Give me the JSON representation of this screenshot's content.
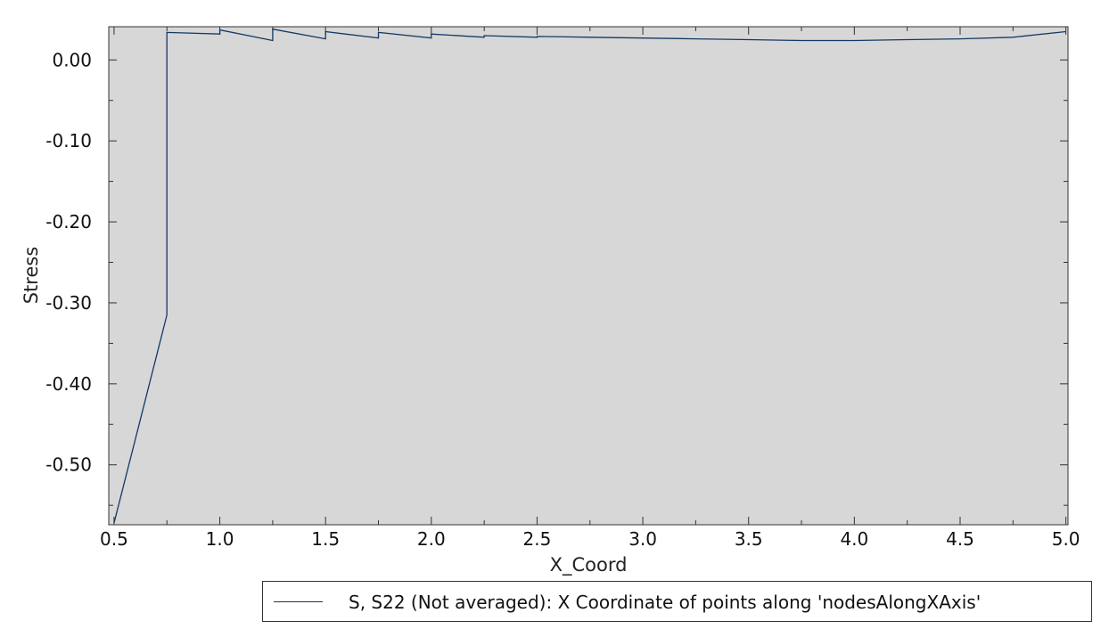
{
  "chart_data": {
    "type": "line",
    "title": "",
    "xlabel": "X_Coord",
    "ylabel": "Stress",
    "xlim": [
      0.475,
      5.01
    ],
    "ylim": [
      -0.574,
      0.041
    ],
    "x_ticks": [
      0.5,
      1.0,
      1.5,
      2.0,
      2.5,
      3.0,
      3.5,
      4.0,
      4.5,
      5.0
    ],
    "x_tick_labels": [
      "0.5",
      "1.0",
      "1.5",
      "2.0",
      "2.5",
      "3.0",
      "3.5",
      "4.0",
      "4.5",
      "5.0"
    ],
    "y_ticks": [
      0.0,
      -0.1,
      -0.2,
      -0.3,
      -0.4,
      -0.5
    ],
    "y_tick_labels": [
      "0.00",
      "-0.10",
      "-0.20",
      "-0.30",
      "-0.40",
      "-0.50"
    ],
    "grid": false,
    "background": "#d7d7d7",
    "line_color": "#123a63",
    "legend_position": "bottom-right",
    "series": [
      {
        "name": "S, S22 (Not averaged): X Coordinate of points along 'nodesAlongXAxis'",
        "x": [
          0.5,
          0.75,
          0.75,
          1.0,
          1.0,
          1.25,
          1.25,
          1.5,
          1.5,
          1.75,
          1.75,
          2.0,
          2.0,
          2.25,
          2.25,
          2.5,
          2.5,
          2.75,
          2.75,
          3.0,
          3.0,
          3.25,
          3.25,
          3.5,
          3.5,
          3.75,
          3.75,
          4.0,
          4.0,
          4.25,
          4.25,
          4.5,
          4.5,
          4.75,
          4.75,
          5.0
        ],
        "y": [
          -0.572,
          -0.315,
          0.034,
          0.032,
          0.037,
          0.024,
          0.038,
          0.026,
          0.035,
          0.027,
          0.034,
          0.027,
          0.032,
          0.028,
          0.03,
          0.028,
          0.029,
          0.028,
          0.028,
          0.027,
          0.027,
          0.026,
          0.026,
          0.025,
          0.025,
          0.024,
          0.024,
          0.024,
          0.024,
          0.025,
          0.025,
          0.026,
          0.026,
          0.028,
          0.028,
          0.035
        ]
      }
    ]
  }
}
